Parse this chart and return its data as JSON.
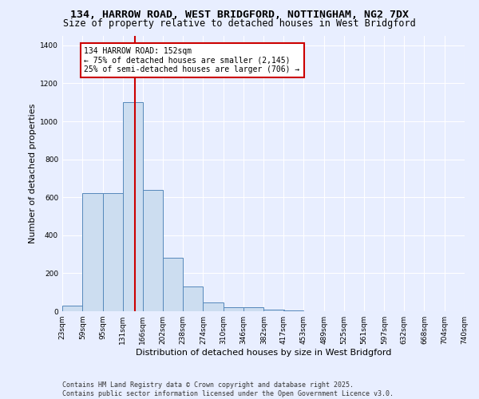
{
  "title_line1": "134, HARROW ROAD, WEST BRIDGFORD, NOTTINGHAM, NG2 7DX",
  "title_line2": "Size of property relative to detached houses in West Bridgford",
  "xlabel": "Distribution of detached houses by size in West Bridgford",
  "ylabel": "Number of detached properties",
  "bin_edges": [
    23,
    59,
    95,
    131,
    166,
    202,
    238,
    274,
    310,
    346,
    382,
    417,
    453,
    489,
    525,
    561,
    597,
    632,
    668,
    704,
    740
  ],
  "bar_heights": [
    30,
    620,
    620,
    1100,
    640,
    280,
    130,
    45,
    20,
    20,
    10,
    3,
    0,
    0,
    0,
    0,
    0,
    0,
    0,
    0
  ],
  "bar_color": "#ccddf0",
  "bar_edgecolor": "#5588bb",
  "property_size": 152,
  "red_line_color": "#cc0000",
  "annotation_text": "134 HARROW ROAD: 152sqm\n← 75% of detached houses are smaller (2,145)\n25% of semi-detached houses are larger (706) →",
  "annotation_box_color": "#ffffff",
  "annotation_box_edgecolor": "#cc0000",
  "ylim": [
    0,
    1450
  ],
  "yticks": [
    0,
    200,
    400,
    600,
    800,
    1000,
    1200,
    1400
  ],
  "background_color": "#e8eeff",
  "grid_color": "#ffffff",
  "footer_line1": "Contains HM Land Registry data © Crown copyright and database right 2025.",
  "footer_line2": "Contains public sector information licensed under the Open Government Licence v3.0.",
  "title_fontsize": 9.5,
  "subtitle_fontsize": 8.5,
  "axis_label_fontsize": 8,
  "tick_fontsize": 6.5,
  "annotation_fontsize": 7,
  "footer_fontsize": 6
}
